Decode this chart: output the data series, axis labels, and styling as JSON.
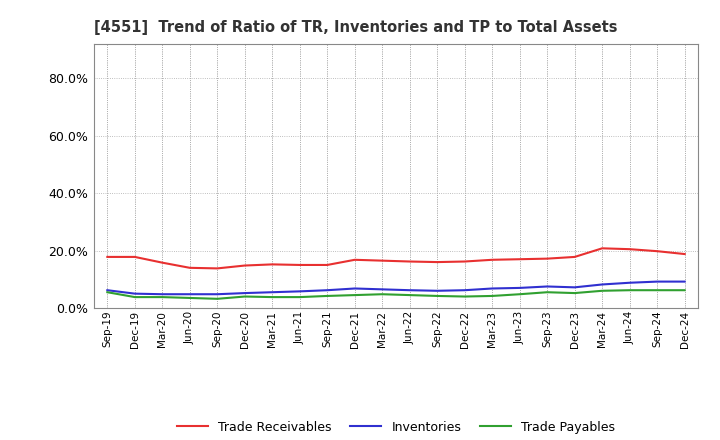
{
  "title": "[4551]  Trend of Ratio of TR, Inventories and TP to Total Assets",
  "x_labels": [
    "Sep-19",
    "Dec-19",
    "Mar-20",
    "Jun-20",
    "Sep-20",
    "Dec-20",
    "Mar-21",
    "Jun-21",
    "Sep-21",
    "Dec-21",
    "Mar-22",
    "Jun-22",
    "Sep-22",
    "Dec-22",
    "Mar-23",
    "Jun-23",
    "Sep-23",
    "Dec-23",
    "Mar-24",
    "Jun-24",
    "Sep-24",
    "Dec-24"
  ],
  "trade_receivables": [
    0.178,
    0.178,
    0.158,
    0.14,
    0.138,
    0.148,
    0.152,
    0.15,
    0.15,
    0.168,
    0.165,
    0.162,
    0.16,
    0.162,
    0.168,
    0.17,
    0.172,
    0.178,
    0.208,
    0.205,
    0.198,
    0.188
  ],
  "inventories": [
    0.062,
    0.05,
    0.048,
    0.048,
    0.048,
    0.052,
    0.055,
    0.058,
    0.062,
    0.068,
    0.065,
    0.062,
    0.06,
    0.062,
    0.068,
    0.07,
    0.075,
    0.072,
    0.082,
    0.088,
    0.092,
    0.092
  ],
  "trade_payables": [
    0.055,
    0.038,
    0.038,
    0.035,
    0.032,
    0.04,
    0.038,
    0.038,
    0.042,
    0.045,
    0.048,
    0.045,
    0.042,
    0.04,
    0.042,
    0.048,
    0.055,
    0.052,
    0.06,
    0.062,
    0.062,
    0.062
  ],
  "tr_color": "#e83030",
  "inv_color": "#3030d0",
  "tp_color": "#30a030",
  "ylim": [
    0.0,
    0.92
  ],
  "yticks": [
    0.0,
    0.2,
    0.4,
    0.6,
    0.8
  ],
  "background_color": "#ffffff",
  "grid_color": "#aaaaaa",
  "legend_labels": [
    "Trade Receivables",
    "Inventories",
    "Trade Payables"
  ]
}
